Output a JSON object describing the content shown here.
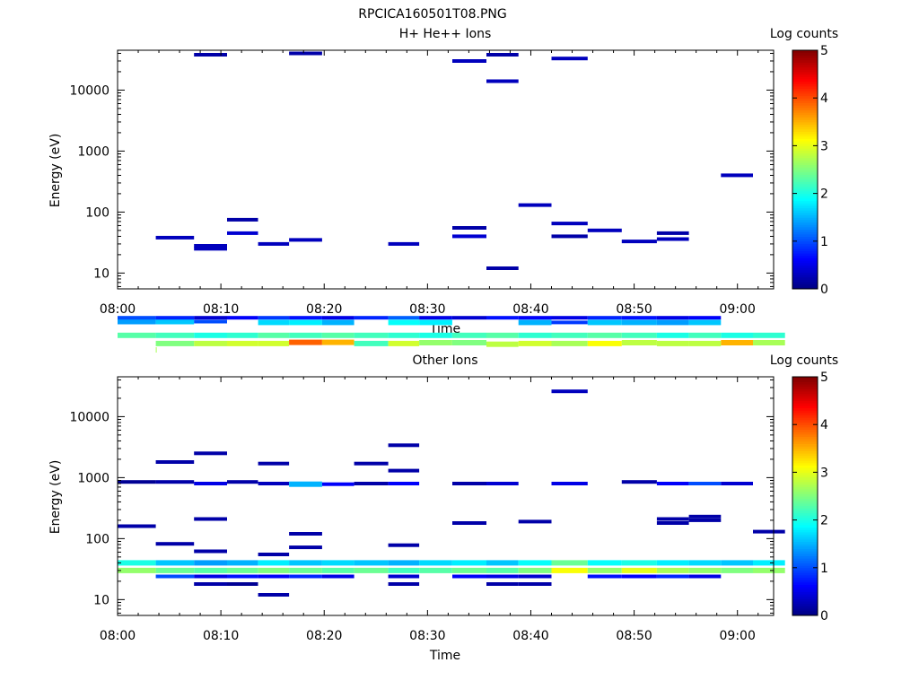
{
  "figure_title": "RPCICA160501T08.PNG",
  "colors": {
    "axis": "#000000",
    "background": "#ffffff"
  },
  "chart_data": [
    {
      "type": "heatmap",
      "title": "H+ He++ Ions",
      "xlabel": "Time",
      "ylabel": "Energy (eV)",
      "y_scale": "log",
      "ylim": [
        5.5,
        45000
      ],
      "xlim_minutes": [
        0,
        63.5
      ],
      "x_tick_labels": [
        "08:00",
        "08:10",
        "08:20",
        "08:30",
        "08:40",
        "08:50",
        "09:00"
      ],
      "x_tick_minutes": [
        0,
        10,
        20,
        30,
        40,
        50,
        60
      ],
      "y_tick_labels": [
        "10",
        "100",
        "1000",
        "10000"
      ],
      "y_tick_values": [
        10,
        100,
        1000,
        10000
      ],
      "colorbar": {
        "label": "Log counts",
        "ticks": [
          "0",
          "1",
          "2",
          "3",
          "4",
          "5"
        ],
        "min": 0,
        "max": 5
      },
      "time_bins_minutes": [
        0,
        3.7,
        7.4,
        10.6,
        13.6,
        16.6,
        19.8,
        22.9,
        26.2,
        29.2,
        32.4,
        35.7,
        38.8,
        42.0,
        45.5,
        48.8,
        52.2,
        55.3,
        58.4,
        61.5
      ],
      "cells": [
        [
          1,
          1,
          0.55,
          2.7
        ],
        [
          1,
          2,
          0.7,
          2.5
        ],
        [
          2,
          3,
          0.7,
          2.8
        ],
        [
          3,
          4,
          0.7,
          2.9
        ],
        [
          4,
          5,
          0.7,
          2.9
        ],
        [
          5,
          6,
          0.73,
          3.9
        ],
        [
          6,
          7,
          0.73,
          3.5
        ],
        [
          7,
          8,
          0.7,
          2.2
        ],
        [
          8,
          9,
          0.7,
          2.9
        ],
        [
          9,
          10,
          0.72,
          2.6
        ],
        [
          10,
          11,
          0.72,
          2.5
        ],
        [
          11,
          12,
          0.68,
          2.8
        ],
        [
          12,
          13,
          0.7,
          2.9
        ],
        [
          13,
          14,
          0.7,
          2.7
        ],
        [
          14,
          15,
          0.7,
          3.1
        ],
        [
          15,
          16,
          0.72,
          2.8
        ],
        [
          16,
          17,
          0.7,
          2.8
        ],
        [
          17,
          18,
          0.7,
          2.8
        ],
        [
          18,
          19,
          0.72,
          3.5
        ],
        [
          19,
          20,
          0.72,
          2.7
        ],
        [
          0,
          1,
          0.95,
          2.3
        ],
        [
          1,
          2,
          0.95,
          2.2
        ],
        [
          2,
          3,
          0.95,
          2.0
        ],
        [
          3,
          4,
          0.95,
          2.1
        ],
        [
          4,
          5,
          0.95,
          2.3
        ],
        [
          5,
          6,
          0.95,
          2.2
        ],
        [
          6,
          7,
          0.95,
          2.3
        ],
        [
          7,
          8,
          0.95,
          2.2
        ],
        [
          8,
          9,
          0.95,
          2.1
        ],
        [
          9,
          10,
          0.95,
          2.0
        ],
        [
          10,
          11,
          0.95,
          2.2
        ],
        [
          11,
          12,
          0.95,
          2.3
        ],
        [
          12,
          13,
          0.95,
          2.1
        ],
        [
          13,
          14,
          0.95,
          2.2
        ],
        [
          14,
          15,
          0.95,
          2.3
        ],
        [
          15,
          16,
          0.95,
          2.2
        ],
        [
          16,
          17,
          0.95,
          2.0
        ],
        [
          17,
          18,
          0.95,
          2.2
        ],
        [
          18,
          19,
          0.95,
          2.0
        ],
        [
          19,
          20,
          0.95,
          2.1
        ],
        [
          0,
          1,
          1.6,
          1.4
        ],
        [
          1,
          2,
          1.6,
          1.6
        ],
        [
          2,
          3,
          1.6,
          1.0
        ],
        [
          4,
          5,
          1.55,
          1.7
        ],
        [
          5,
          6,
          1.55,
          1.8
        ],
        [
          6,
          7,
          1.55,
          1.5
        ],
        [
          8,
          9,
          1.55,
          1.9
        ],
        [
          9,
          10,
          1.55,
          1.8
        ],
        [
          12,
          13,
          1.55,
          1.5
        ],
        [
          13,
          14,
          1.55,
          0.9
        ],
        [
          14,
          15,
          1.55,
          1.6
        ],
        [
          15,
          16,
          1.55,
          1.5
        ],
        [
          16,
          17,
          1.55,
          1.4
        ],
        [
          17,
          18,
          1.55,
          1.6
        ],
        [
          0,
          1,
          1.85,
          1.0
        ],
        [
          1,
          2,
          1.85,
          0.8
        ],
        [
          2,
          3,
          1.85,
          0.4
        ],
        [
          3,
          4,
          1.85,
          0.6
        ],
        [
          4,
          5,
          1.85,
          0.9
        ],
        [
          5,
          6,
          1.85,
          0.7
        ],
        [
          6,
          7,
          1.85,
          0.5
        ],
        [
          7,
          8,
          1.85,
          0.8
        ],
        [
          8,
          9,
          1.85,
          1.1
        ],
        [
          9,
          10,
          1.85,
          0.5
        ],
        [
          10,
          11,
          1.85,
          0.4
        ],
        [
          11,
          12,
          1.85,
          0.7
        ],
        [
          12,
          13,
          1.85,
          0.6
        ],
        [
          13,
          14,
          1.85,
          0.5
        ],
        [
          14,
          15,
          1.85,
          0.8
        ],
        [
          15,
          16,
          1.85,
          0.7
        ],
        [
          16,
          17,
          1.85,
          0.5
        ],
        [
          17,
          18,
          1.85,
          0.6
        ],
        [
          1,
          2,
          38,
          0.3
        ],
        [
          2,
          3,
          28,
          0.3
        ],
        [
          2,
          3,
          25,
          0.3
        ],
        [
          3,
          4,
          75,
          0.2
        ],
        [
          3,
          4,
          45,
          0.4
        ],
        [
          4,
          5,
          30,
          0.3
        ],
        [
          5,
          6,
          35,
          0.3
        ],
        [
          8,
          9,
          30,
          0.3
        ],
        [
          10,
          11,
          55,
          0.2
        ],
        [
          10,
          11,
          40,
          0.4
        ],
        [
          11,
          12,
          12,
          0.2
        ],
        [
          13,
          14,
          40,
          0.2
        ],
        [
          13,
          14,
          65,
          0.3
        ],
        [
          14,
          15,
          50,
          0.3
        ],
        [
          15,
          16,
          33,
          0.3
        ],
        [
          16,
          17,
          45,
          0.2
        ],
        [
          16,
          17,
          36,
          0.3
        ],
        [
          18,
          19,
          400,
          0.3
        ],
        [
          12,
          13,
          130,
          0.3
        ],
        [
          2,
          3,
          38000,
          0.2
        ],
        [
          5,
          6,
          40000,
          0.2
        ],
        [
          11,
          12,
          38000,
          0.2
        ],
        [
          11,
          12,
          14000,
          0.3
        ],
        [
          13,
          14,
          33000,
          0.3
        ],
        [
          10,
          11,
          30000,
          0.3
        ]
      ]
    },
    {
      "type": "heatmap",
      "title": "Other Ions",
      "xlabel": "Time",
      "ylabel": "Energy (eV)",
      "y_scale": "log",
      "ylim": [
        5.5,
        45000
      ],
      "xlim_minutes": [
        0,
        63.5
      ],
      "x_tick_labels": [
        "08:00",
        "08:10",
        "08:20",
        "08:30",
        "08:40",
        "08:50",
        "09:00"
      ],
      "x_tick_minutes": [
        0,
        10,
        20,
        30,
        40,
        50,
        60
      ],
      "y_tick_labels": [
        "10",
        "100",
        "1000",
        "10000"
      ],
      "y_tick_values": [
        10,
        100,
        1000,
        10000
      ],
      "colorbar": {
        "label": "Log counts",
        "ticks": [
          "0",
          "1",
          "2",
          "3",
          "4",
          "5"
        ],
        "min": 0,
        "max": 5
      },
      "time_bins_minutes": [
        0,
        3.7,
        7.4,
        10.6,
        13.6,
        16.6,
        19.8,
        22.9,
        26.2,
        29.2,
        32.4,
        35.7,
        38.8,
        42.0,
        45.5,
        48.8,
        52.2,
        55.3,
        58.4,
        61.5
      ],
      "cells": [
        [
          0,
          1,
          30,
          2.6
        ],
        [
          1,
          2,
          30,
          2.4
        ],
        [
          2,
          3,
          30,
          2.3
        ],
        [
          3,
          4,
          30,
          2.4
        ],
        [
          4,
          5,
          30,
          2.5
        ],
        [
          5,
          6,
          30,
          2.4
        ],
        [
          6,
          7,
          30,
          2.3
        ],
        [
          7,
          8,
          30,
          2.4
        ],
        [
          8,
          9,
          30,
          2.2
        ],
        [
          9,
          10,
          30,
          2.3
        ],
        [
          10,
          11,
          30,
          2.4
        ],
        [
          11,
          12,
          30,
          2.3
        ],
        [
          12,
          13,
          30,
          2.5
        ],
        [
          13,
          14,
          30,
          3.1
        ],
        [
          14,
          15,
          30,
          2.6
        ],
        [
          15,
          16,
          30,
          3.0
        ],
        [
          16,
          17,
          30,
          2.7
        ],
        [
          17,
          18,
          30,
          2.6
        ],
        [
          18,
          19,
          30,
          2.5
        ],
        [
          19,
          20,
          30,
          2.6
        ],
        [
          0,
          1,
          40,
          2.0
        ],
        [
          1,
          2,
          40,
          1.6
        ],
        [
          2,
          3,
          40,
          1.4
        ],
        [
          3,
          4,
          40,
          1.5
        ],
        [
          4,
          5,
          40,
          1.8
        ],
        [
          5,
          6,
          40,
          1.6
        ],
        [
          6,
          7,
          40,
          1.7
        ],
        [
          7,
          8,
          40,
          1.6
        ],
        [
          8,
          9,
          40,
          1.5
        ],
        [
          9,
          10,
          40,
          1.7
        ],
        [
          10,
          11,
          40,
          1.8
        ],
        [
          11,
          12,
          40,
          1.6
        ],
        [
          12,
          13,
          40,
          1.9
        ],
        [
          13,
          14,
          40,
          2.4
        ],
        [
          14,
          15,
          40,
          1.9
        ],
        [
          15,
          16,
          40,
          2.0
        ],
        [
          16,
          17,
          40,
          1.8
        ],
        [
          17,
          18,
          40,
          1.7
        ],
        [
          18,
          19,
          40,
          1.6
        ],
        [
          19,
          20,
          40,
          1.8
        ],
        [
          1,
          2,
          24,
          1.0
        ],
        [
          2,
          3,
          24,
          0.5
        ],
        [
          3,
          4,
          24,
          0.7
        ],
        [
          4,
          5,
          24,
          0.6
        ],
        [
          5,
          6,
          24,
          0.8
        ],
        [
          6,
          7,
          24,
          0.5
        ],
        [
          8,
          9,
          24,
          0.4
        ],
        [
          10,
          11,
          24,
          0.6
        ],
        [
          11,
          12,
          24,
          0.5
        ],
        [
          12,
          13,
          24,
          0.4
        ],
        [
          14,
          15,
          24,
          0.7
        ],
        [
          15,
          16,
          24,
          0.6
        ],
        [
          16,
          17,
          24,
          0.8
        ],
        [
          17,
          18,
          24,
          0.5
        ],
        [
          2,
          3,
          18,
          0.2
        ],
        [
          3,
          4,
          18,
          0.1
        ],
        [
          4,
          5,
          12,
          0.2
        ],
        [
          8,
          9,
          18,
          0.2
        ],
        [
          11,
          12,
          18,
          0.2
        ],
        [
          12,
          13,
          18,
          0.2
        ],
        [
          0,
          1,
          850,
          0.1
        ],
        [
          1,
          2,
          850,
          0.2
        ],
        [
          2,
          3,
          800,
          0.5
        ],
        [
          3,
          4,
          850,
          0.2
        ],
        [
          4,
          5,
          800,
          0.3
        ],
        [
          5,
          6,
          780,
          1.5
        ],
        [
          6,
          7,
          780,
          0.6
        ],
        [
          7,
          8,
          800,
          0.2
        ],
        [
          8,
          9,
          800,
          0.6
        ],
        [
          10,
          11,
          800,
          0.2
        ],
        [
          11,
          12,
          800,
          0.4
        ],
        [
          13,
          14,
          800,
          0.5
        ],
        [
          15,
          16,
          850,
          0.2
        ],
        [
          16,
          17,
          800,
          0.6
        ],
        [
          17,
          18,
          800,
          1.0
        ],
        [
          18,
          19,
          800,
          0.4
        ],
        [
          0,
          1,
          160,
          0.2
        ],
        [
          1,
          2,
          82,
          0.2
        ],
        [
          2,
          3,
          210,
          0.2
        ],
        [
          2,
          3,
          62,
          0.2
        ],
        [
          4,
          5,
          55,
          0.2
        ],
        [
          5,
          6,
          120,
          0.2
        ],
        [
          5,
          6,
          72,
          0.2
        ],
        [
          8,
          9,
          3400,
          0.2
        ],
        [
          8,
          9,
          1300,
          0.2
        ],
        [
          8,
          9,
          78,
          0.2
        ],
        [
          10,
          11,
          180,
          0.2
        ],
        [
          12,
          13,
          190,
          0.2
        ],
        [
          13,
          14,
          26000,
          0.3
        ],
        [
          16,
          17,
          210,
          0.2
        ],
        [
          16,
          17,
          180,
          0.2
        ],
        [
          17,
          18,
          230,
          0.2
        ],
        [
          17,
          18,
          200,
          0.2
        ],
        [
          19,
          20,
          130,
          0.2
        ],
        [
          1,
          2,
          1800,
          0.2
        ],
        [
          2,
          3,
          2500,
          0.2
        ],
        [
          4,
          5,
          1700,
          0.2
        ],
        [
          7,
          8,
          1700,
          0.2
        ]
      ]
    }
  ]
}
